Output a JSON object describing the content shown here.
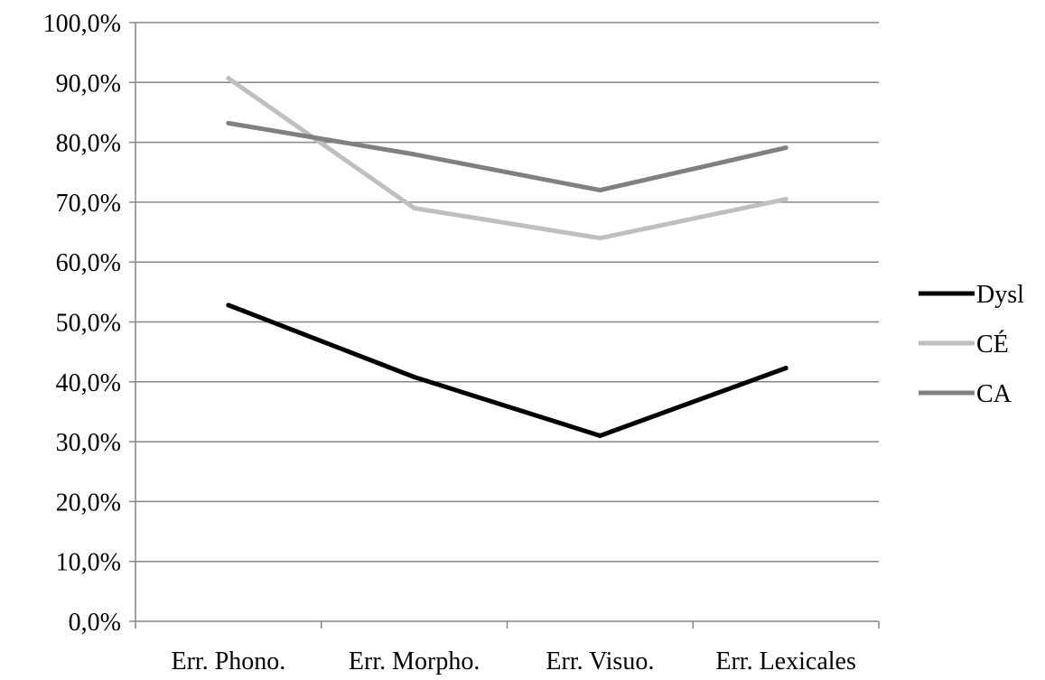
{
  "chart_data": {
    "type": "line",
    "title": "",
    "xlabel": "",
    "ylabel": "",
    "categories": [
      "Err. Phono.",
      "Err. Morpho.",
      "Err. Visuo.",
      "Err. Lexicales"
    ],
    "y_ticks": [
      "0,0%",
      "10,0%",
      "20,0%",
      "30,0%",
      "40,0%",
      "50,0%",
      "60,0%",
      "70,0%",
      "80,0%",
      "90,0%",
      "100,0%"
    ],
    "ylim": [
      0,
      100
    ],
    "grid": "horizontal",
    "legend_position": "right",
    "series": [
      {
        "name": "Dysl",
        "values": [
          52.8,
          40.8,
          31.0,
          42.3
        ],
        "color": "#000000"
      },
      {
        "name": "CÉ",
        "values": [
          90.7,
          69.0,
          64.0,
          70.5
        ],
        "color": "#bfbfbf"
      },
      {
        "name": "CA",
        "values": [
          83.2,
          78.0,
          72.0,
          79.1
        ],
        "color": "#808080"
      }
    ]
  }
}
